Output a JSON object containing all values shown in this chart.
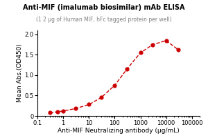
{
  "title": "Anti-MIF (imalumab biosimilar) mAb ELISA",
  "subtitle": "(1 2 μg of Human MIF, hFc tagged protein per well)",
  "xlabel": "Anti-MIF Neutralizing antibody (μg/mL)",
  "ylabel": "Mean Abs.(OD450)",
  "x_data_plot": [
    0.3,
    0.6,
    1.0,
    3.0,
    10.0,
    30.0,
    100.0,
    300.0,
    1000.0,
    3000.0,
    10000.0,
    30000.0
  ],
  "y_data_plot": [
    0.08,
    0.1,
    0.12,
    0.18,
    0.28,
    0.45,
    0.75,
    1.15,
    1.55,
    1.75,
    1.85,
    1.62
  ],
  "line_color": "#cc0000",
  "dot_color": "#cc0000",
  "background_color": "#ffffff",
  "xlim_log": [
    0.1,
    200000
  ],
  "ylim": [
    0,
    2.1
  ],
  "yticks": [
    0.0,
    0.5,
    1.0,
    1.5,
    2.0
  ],
  "ytick_labels": [
    "0",
    "0.5",
    "1.0",
    "1.5",
    "2.0"
  ],
  "xtick_positions": [
    0.1,
    1,
    10,
    100,
    1000,
    10000,
    100000
  ],
  "xtick_labels": [
    "0.1",
    "1",
    "10",
    "100",
    "1000",
    "10000",
    "100000"
  ],
  "title_fontsize": 7.0,
  "subtitle_fontsize": 5.5,
  "label_fontsize": 6.5,
  "tick_fontsize": 6.0
}
